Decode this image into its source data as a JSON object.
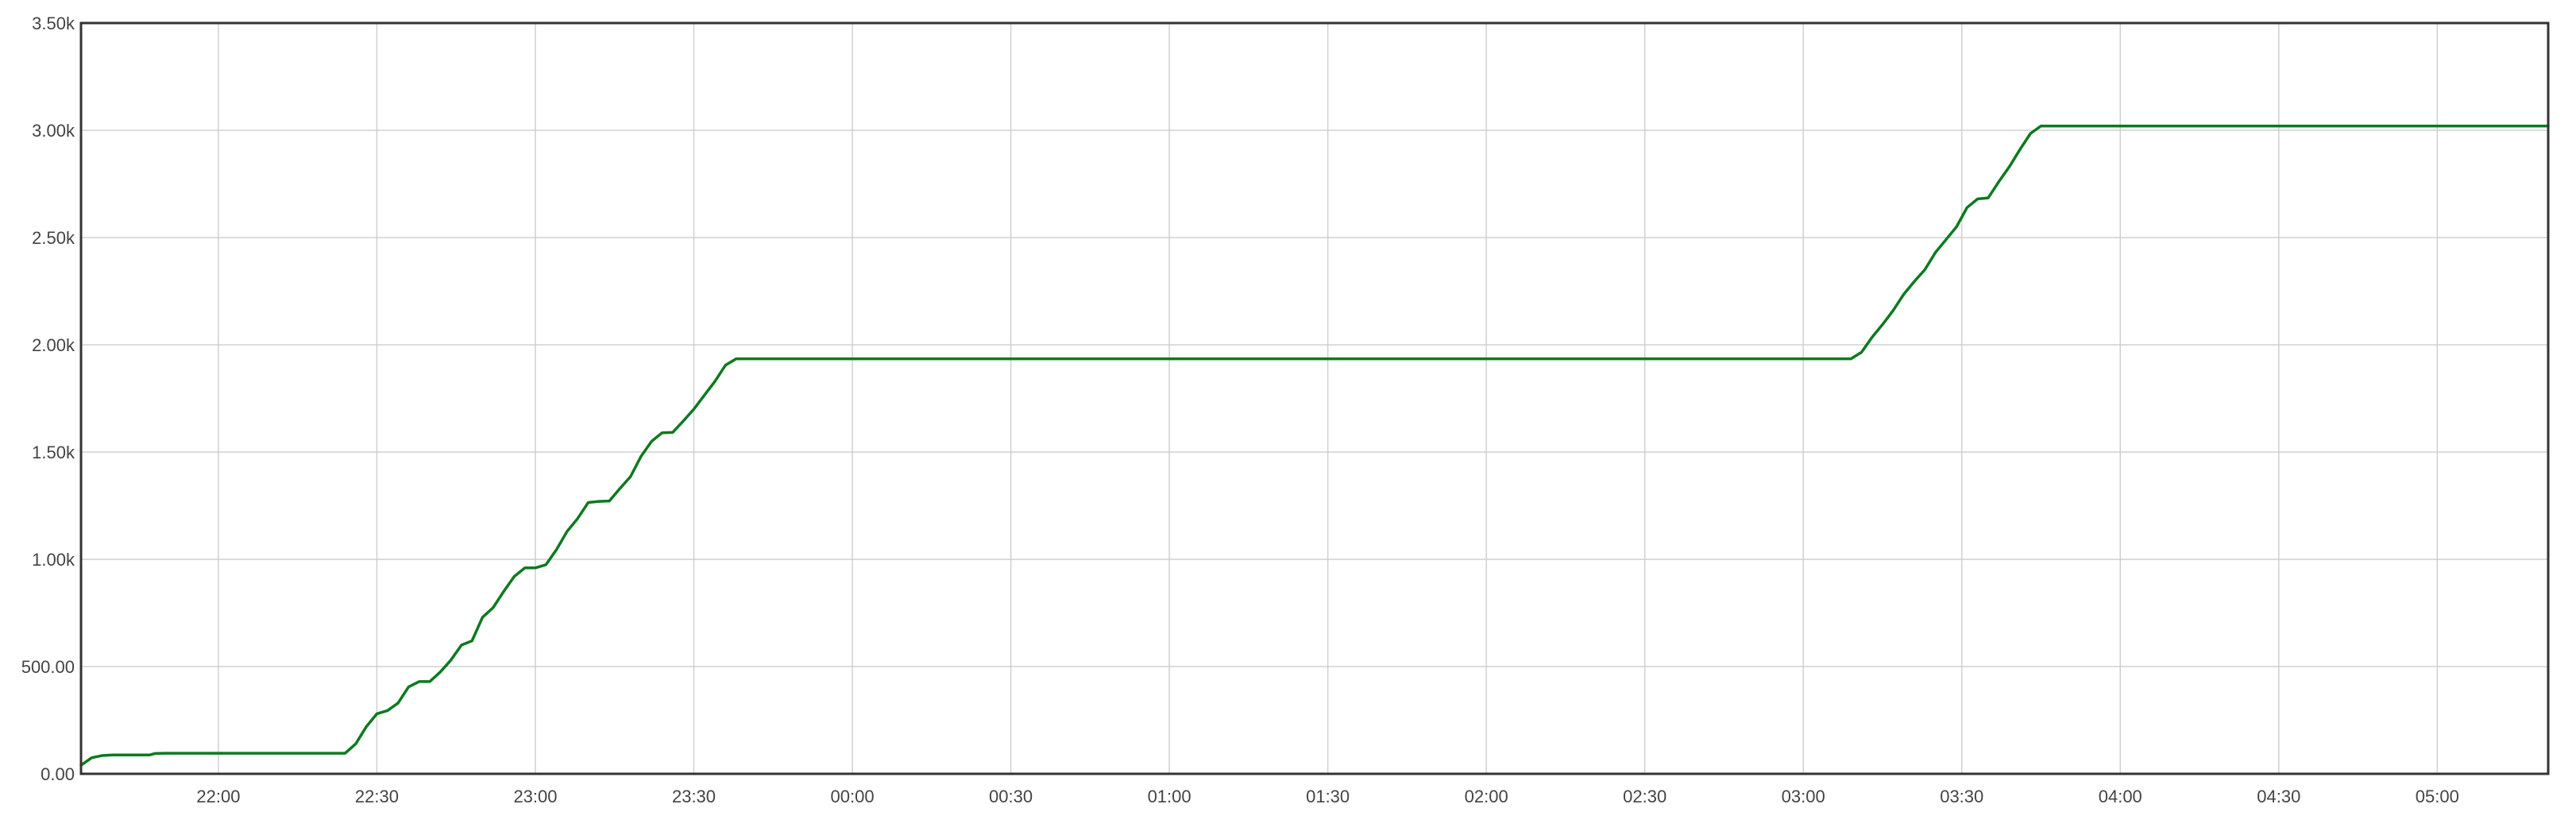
{
  "chart_data": {
    "type": "line",
    "title": "",
    "xlabel": "",
    "ylabel": "",
    "grid": true,
    "x_axis": {
      "kind": "time",
      "range": [
        "21:34",
        "05:21"
      ],
      "tick_values": [
        "22:00",
        "22:30",
        "23:00",
        "23:30",
        "00:00",
        "00:30",
        "01:00",
        "01:30",
        "02:00",
        "02:30",
        "03:00",
        "03:30",
        "04:00",
        "04:30",
        "05:00"
      ],
      "tick_labels": [
        "22:00",
        "22:30",
        "23:00",
        "23:30",
        "00:00",
        "00:30",
        "01:00",
        "01:30",
        "02:00",
        "02:30",
        "03:00",
        "03:30",
        "04:00",
        "04:30",
        "05:00"
      ]
    },
    "y_axis": {
      "range": [
        0,
        3500
      ],
      "tick_values": [
        0,
        500,
        1000,
        1500,
        2000,
        2500,
        3000,
        3500
      ],
      "tick_labels": [
        "0.00",
        "500.00",
        "1.00k",
        "1.50k",
        "2.00k",
        "2.50k",
        "3.00k",
        "3.50k"
      ]
    },
    "series": [
      {
        "color": "#0b7a1e",
        "points": [
          [
            "21:34",
            40
          ],
          [
            "21:36",
            75
          ],
          [
            "21:38",
            85
          ],
          [
            "21:40",
            88
          ],
          [
            "21:47",
            88
          ],
          [
            "21:48",
            95
          ],
          [
            "21:50",
            96
          ],
          [
            "22:24",
            96
          ],
          [
            "22:26",
            140
          ],
          [
            "22:28",
            220
          ],
          [
            "22:30",
            280
          ],
          [
            "22:32",
            295
          ],
          [
            "22:34",
            330
          ],
          [
            "22:36",
            405
          ],
          [
            "22:38",
            430
          ],
          [
            "22:40",
            430
          ],
          [
            "22:42",
            475
          ],
          [
            "22:44",
            530
          ],
          [
            "22:46",
            600
          ],
          [
            "22:48",
            620
          ],
          [
            "22:50",
            730
          ],
          [
            "22:52",
            775
          ],
          [
            "22:54",
            850
          ],
          [
            "22:56",
            920
          ],
          [
            "22:58",
            960
          ],
          [
            "23:00",
            960
          ],
          [
            "23:02",
            975
          ],
          [
            "23:04",
            1045
          ],
          [
            "23:06",
            1130
          ],
          [
            "23:08",
            1190
          ],
          [
            "23:10",
            1265
          ],
          [
            "23:12",
            1270
          ],
          [
            "23:14",
            1272
          ],
          [
            "23:16",
            1330
          ],
          [
            "23:18",
            1385
          ],
          [
            "23:20",
            1480
          ],
          [
            "23:22",
            1550
          ],
          [
            "23:24",
            1590
          ],
          [
            "23:26",
            1592
          ],
          [
            "23:28",
            1645
          ],
          [
            "23:30",
            1700
          ],
          [
            "23:32",
            1765
          ],
          [
            "23:34",
            1830
          ],
          [
            "23:36",
            1905
          ],
          [
            "23:38",
            1935
          ],
          [
            "03:09",
            1935
          ],
          [
            "03:11",
            1965
          ],
          [
            "03:13",
            2035
          ],
          [
            "03:15",
            2095
          ],
          [
            "03:17",
            2160
          ],
          [
            "03:19",
            2235
          ],
          [
            "03:21",
            2295
          ],
          [
            "03:23",
            2350
          ],
          [
            "03:25",
            2430
          ],
          [
            "03:27",
            2490
          ],
          [
            "03:29",
            2550
          ],
          [
            "03:31",
            2640
          ],
          [
            "03:33",
            2680
          ],
          [
            "03:35",
            2685
          ],
          [
            "03:37",
            2760
          ],
          [
            "03:39",
            2830
          ],
          [
            "03:41",
            2910
          ],
          [
            "03:43",
            2985
          ],
          [
            "03:45",
            3020
          ],
          [
            "05:21",
            3020
          ]
        ]
      }
    ]
  }
}
